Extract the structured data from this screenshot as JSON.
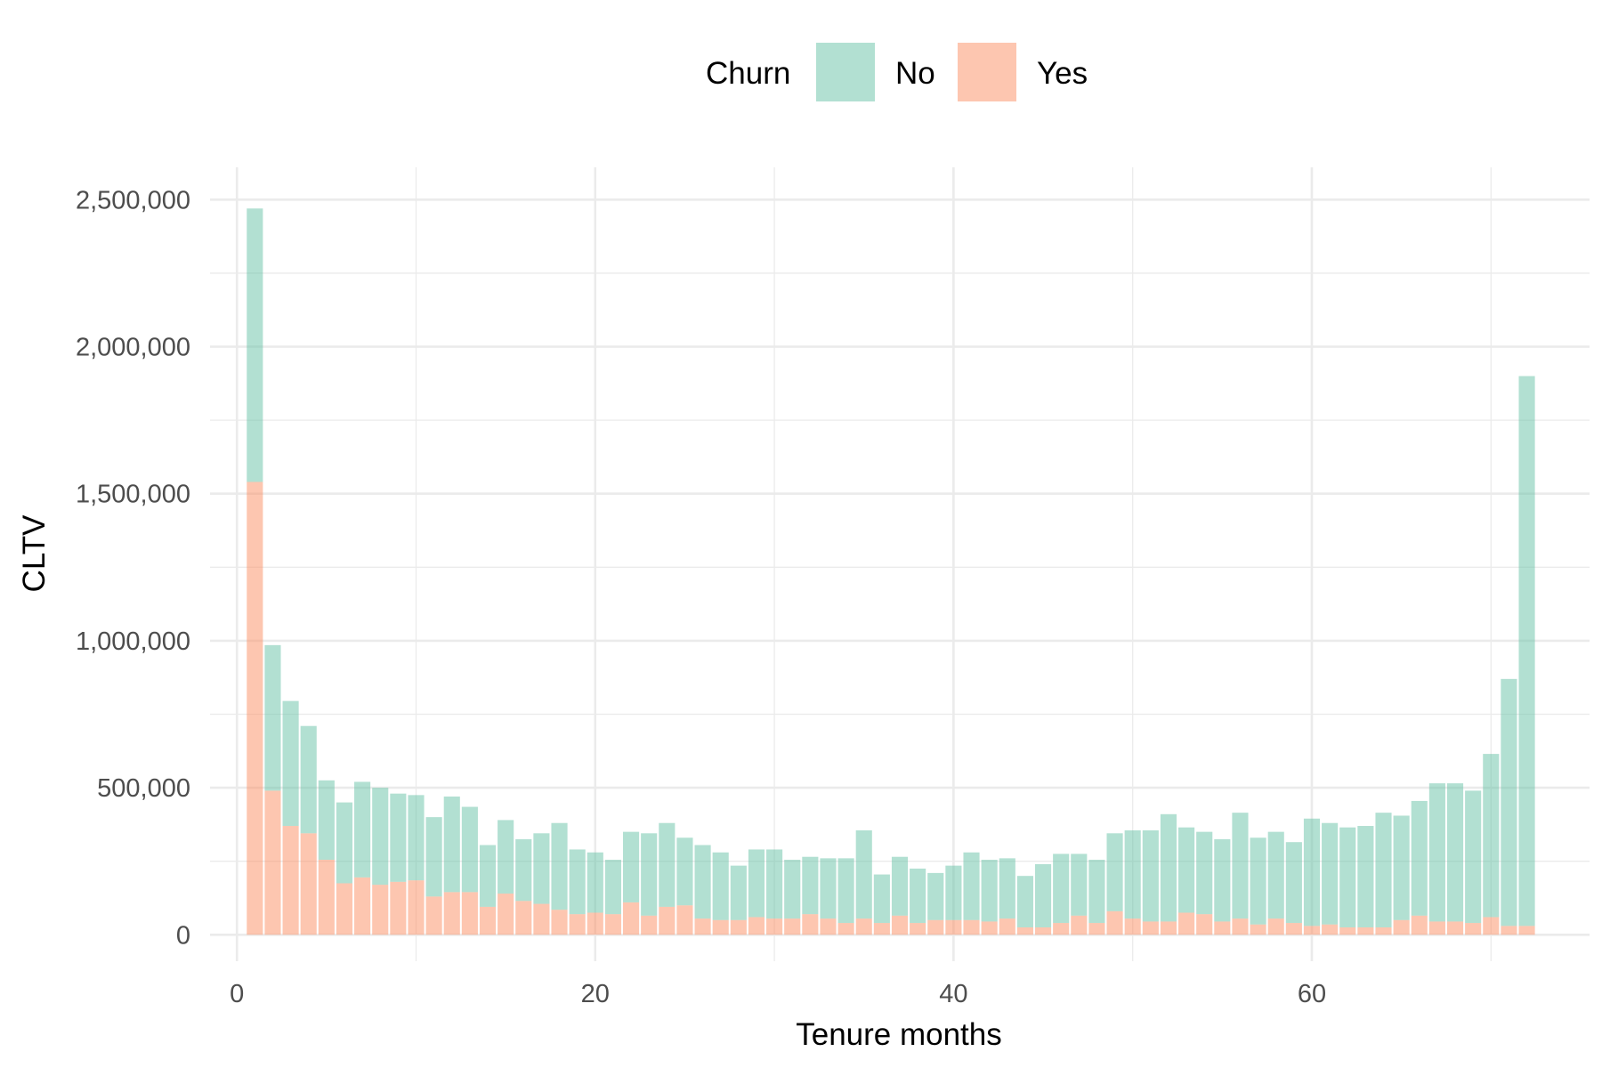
{
  "legend": {
    "title": "Churn",
    "items": [
      {
        "label": "No",
        "color": "#66C2A5"
      },
      {
        "label": "Yes",
        "color": "#FC8D62"
      }
    ]
  },
  "chart_data": {
    "type": "bar",
    "stacked": true,
    "bar_opacity": 0.5,
    "xlabel": "Tenure months",
    "ylabel": "CLTV",
    "xlim": [
      -1.5,
      75.5
    ],
    "ylim": [
      -90000,
      2610000
    ],
    "x_ticks": [
      0,
      20,
      40,
      60
    ],
    "x_tick_labels": [
      "0",
      "20",
      "40",
      "60"
    ],
    "y_ticks": [
      0,
      500000,
      1000000,
      1500000,
      2000000,
      2500000
    ],
    "y_tick_labels": [
      "0",
      "500,000",
      "1,000,000",
      "1,500,000",
      "2,000,000",
      "2,500,000"
    ],
    "grid": true,
    "legend_position": "top",
    "x": [
      1,
      2,
      3,
      4,
      5,
      6,
      7,
      8,
      9,
      10,
      11,
      12,
      13,
      14,
      15,
      16,
      17,
      18,
      19,
      20,
      21,
      22,
      23,
      24,
      25,
      26,
      27,
      28,
      29,
      30,
      31,
      32,
      33,
      34,
      35,
      36,
      37,
      38,
      39,
      40,
      41,
      42,
      43,
      44,
      45,
      46,
      47,
      48,
      49,
      50,
      51,
      52,
      53,
      54,
      55,
      56,
      57,
      58,
      59,
      60,
      61,
      62,
      63,
      64,
      65,
      66,
      67,
      68,
      69,
      70,
      71,
      72
    ],
    "series": [
      {
        "name": "Yes",
        "color": "#FC8D62",
        "values": [
          1540000,
          490000,
          370000,
          345000,
          255000,
          175000,
          195000,
          170000,
          180000,
          185000,
          130000,
          145000,
          145000,
          95000,
          140000,
          115000,
          105000,
          85000,
          70000,
          75000,
          70000,
          110000,
          65000,
          95000,
          100000,
          55000,
          50000,
          50000,
          60000,
          55000,
          55000,
          70000,
          55000,
          40000,
          55000,
          40000,
          65000,
          40000,
          50000,
          50000,
          50000,
          45000,
          55000,
          25000,
          25000,
          40000,
          65000,
          40000,
          80000,
          55000,
          45000,
          45000,
          75000,
          70000,
          45000,
          55000,
          35000,
          55000,
          40000,
          30000,
          35000,
          25000,
          25000,
          25000,
          50000,
          65000,
          45000,
          45000,
          40000,
          60000,
          30000,
          30000
        ]
      },
      {
        "name": "No",
        "color": "#66C2A5",
        "values": [
          930000,
          495000,
          425000,
          365000,
          270000,
          275000,
          325000,
          330000,
          300000,
          290000,
          270000,
          325000,
          290000,
          210000,
          250000,
          210000,
          240000,
          295000,
          220000,
          205000,
          185000,
          240000,
          280000,
          285000,
          230000,
          250000,
          230000,
          185000,
          230000,
          235000,
          200000,
          195000,
          205000,
          220000,
          300000,
          165000,
          200000,
          185000,
          160000,
          185000,
          230000,
          210000,
          205000,
          175000,
          215000,
          235000,
          210000,
          215000,
          265000,
          300000,
          310000,
          365000,
          290000,
          280000,
          280000,
          360000,
          295000,
          295000,
          275000,
          365000,
          345000,
          340000,
          345000,
          390000,
          355000,
          390000,
          470000,
          470000,
          450000,
          555000,
          840000,
          1870000
        ]
      }
    ]
  }
}
